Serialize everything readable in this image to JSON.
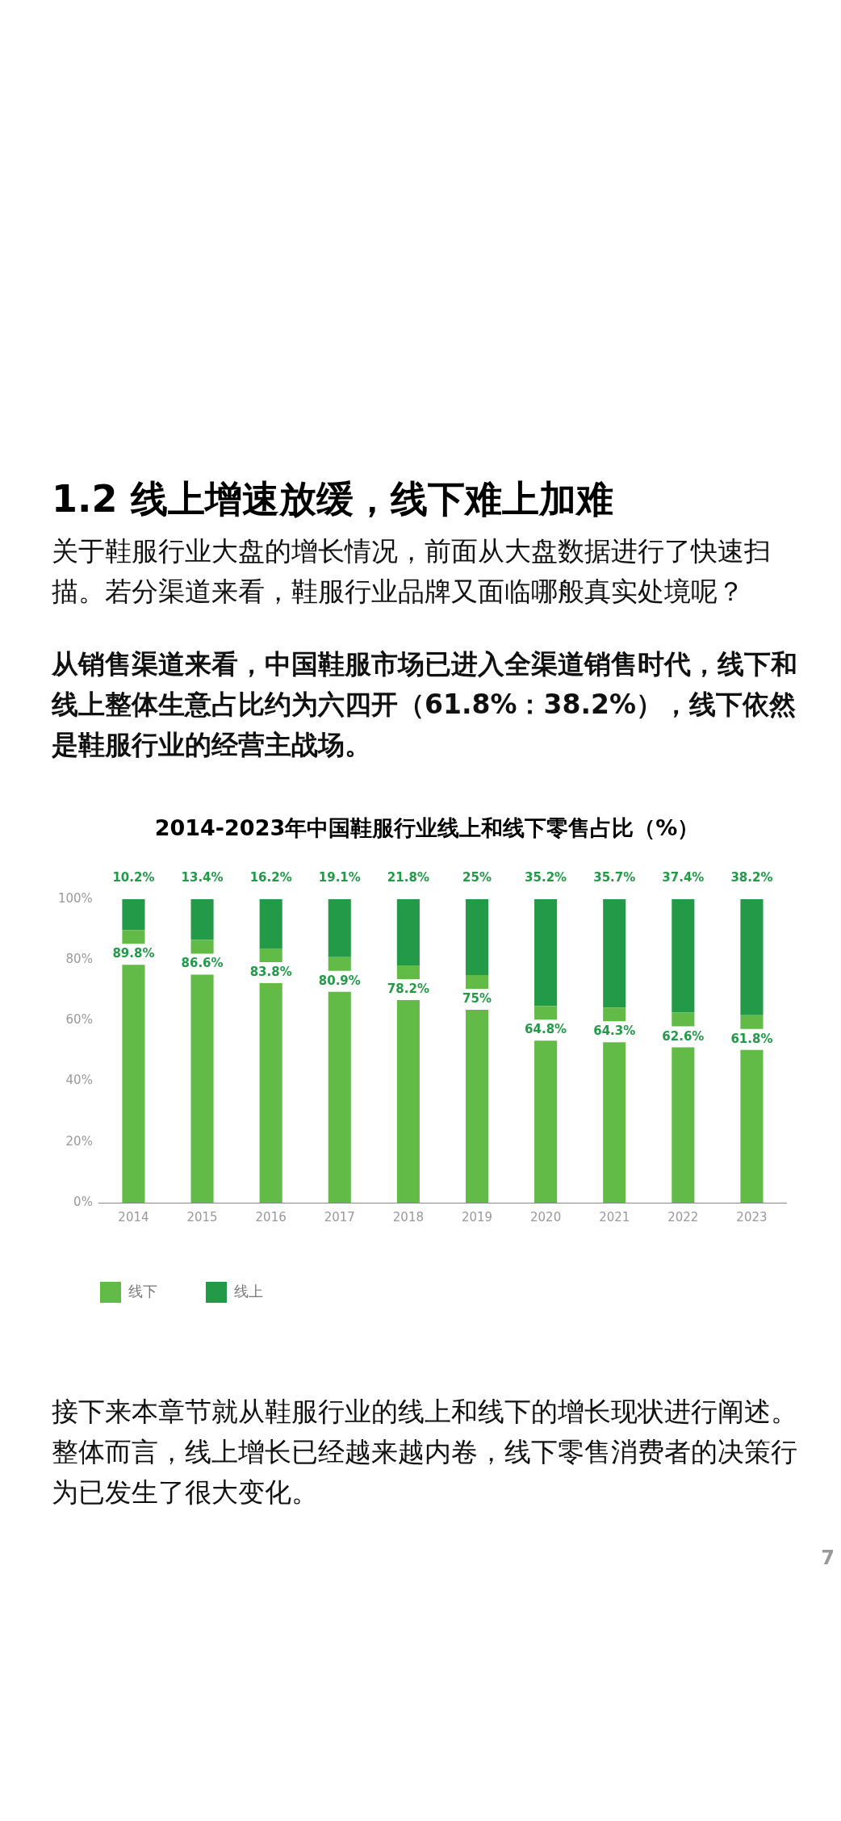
{
  "chart_data": {
    "type": "bar",
    "title": "2014-2023年中国鞋服行业线上和线下零售占比（%）",
    "annotations": [
      "1.2 线上增速放缓，线下难上加难",
      "关于鞋服行业大盘的增长情况，前面从大盘数据进行了快速扫描。若分渠道来看，鞋服行业品牌又面临哪般真实处境呢？",
      "从销售渠道来看，中国鞋服市场已进入全渠道销售时代，线下和线上整体生意占比约为六四开（61.8%：38.2%），线下依然是鞋服行业的经营主战场。",
      "接下来本章节就从鞋服行业的线上和线下的增长现状进行阐述。整体而言，线上增长已经越来越内卷，线下零售消费者的决策行为已发生了很大变化。",
      "7"
    ],
    "categories": [
      "2014",
      "2015",
      "2016",
      "2017",
      "2018",
      "2019",
      "2020",
      "2021",
      "2022",
      "2023"
    ],
    "stacked": true,
    "series": [
      {
        "name": "线下",
        "color": "#62bb46",
        "values": [
          89.8,
          86.6,
          83.8,
          80.9,
          78.2,
          75,
          64.8,
          64.3,
          62.6,
          61.8
        ],
        "value_labels": [
          "89.8%",
          "86.6%",
          "83.8%",
          "80.9%",
          "78.2%",
          "75%",
          "64.8%",
          "64.3%",
          "62.6%",
          "61.8%"
        ]
      },
      {
        "name": "线上",
        "color": "#239a48",
        "values": [
          10.2,
          13.4,
          16.2,
          19.1,
          21.8,
          25,
          35.2,
          35.7,
          37.4,
          38.2
        ],
        "value_labels": [
          "10.2%",
          "13.4%",
          "16.2%",
          "19.1%",
          "21.8%",
          "25%",
          "35.2%",
          "35.7%",
          "37.4%",
          "38.2%"
        ]
      }
    ],
    "ylim": [
      0,
      100
    ],
    "yticks": [
      {
        "value": 0,
        "label": "0%"
      },
      {
        "value": 20,
        "label": "20%"
      },
      {
        "value": 40,
        "label": "40%"
      },
      {
        "value": 60,
        "label": "60%"
      },
      {
        "value": 80,
        "label": "80%"
      },
      {
        "value": 100,
        "label": "100%"
      }
    ],
    "grid": false,
    "legend": "bottom left"
  }
}
